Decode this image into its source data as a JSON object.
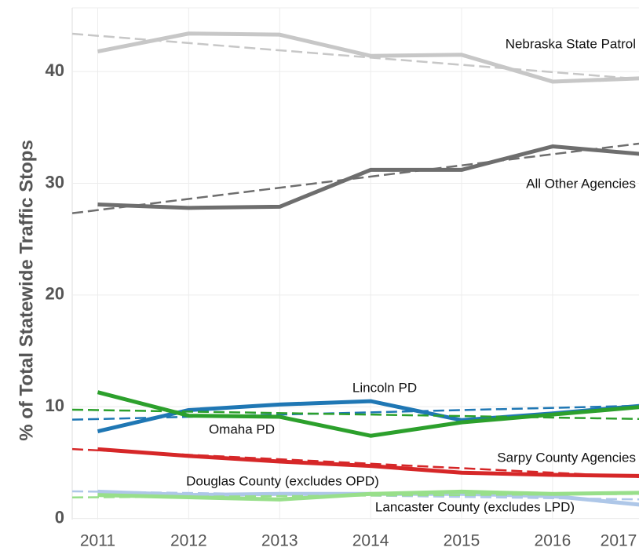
{
  "chart_data": {
    "type": "line",
    "y_label": "% of Total Statewide Traffic Stops",
    "x": [
      2011,
      2012,
      2013,
      2014,
      2015,
      2016,
      2017
    ],
    "xlim": [
      2010.72,
      2016.95
    ],
    "ylim": [
      -0.1,
      45.7
    ],
    "xticks": [
      2011,
      2012,
      2013,
      2014,
      2015,
      2016,
      2017
    ],
    "yticks": [
      0,
      10,
      20,
      30,
      40
    ],
    "grid": true,
    "series": [
      {
        "name": "Nebraska State Patrol",
        "color": "#c7c7c7",
        "values": [
          41.8,
          43.4,
          43.3,
          41.4,
          41.5,
          39.1,
          39.4
        ],
        "trend": [
          43.2,
          39.3
        ]
      },
      {
        "name": "All Other Agencies",
        "color": "#6e6e6e",
        "values": [
          28.1,
          27.8,
          27.9,
          31.2,
          31.2,
          33.3,
          32.6
        ],
        "trend": [
          27.6,
          33.6
        ]
      },
      {
        "name": "Lincoln PD",
        "color": "#1f77b4",
        "values": [
          7.8,
          9.7,
          10.2,
          10.5,
          8.8,
          9.4,
          10.1
        ],
        "trend": [
          8.9,
          10.1
        ]
      },
      {
        "name": "Omaha PD",
        "color": "#2ca02c",
        "values": [
          11.3,
          9.2,
          9.1,
          7.4,
          8.6,
          9.3,
          10.0
        ],
        "trend": [
          9.7,
          8.9
        ]
      },
      {
        "name": "Sarpy County Agencies",
        "color": "#d62728",
        "values": [
          6.2,
          5.6,
          5.1,
          4.7,
          4.1,
          3.9,
          3.8
        ],
        "trend": [
          6.1,
          3.7
        ]
      },
      {
        "name": "Douglas County (excludes OPD)",
        "color": "#aec7e8",
        "values": [
          2.4,
          2.1,
          2.2,
          2.2,
          2.2,
          2.0,
          1.2
        ],
        "trend": [
          2.4,
          1.7
        ]
      },
      {
        "name": "Lancaster County (excludes LPD)",
        "color": "#98df8a",
        "values": [
          2.1,
          1.9,
          1.7,
          2.2,
          2.4,
          2.2,
          2.3
        ],
        "trend": [
          1.9,
          2.2
        ]
      }
    ]
  }
}
